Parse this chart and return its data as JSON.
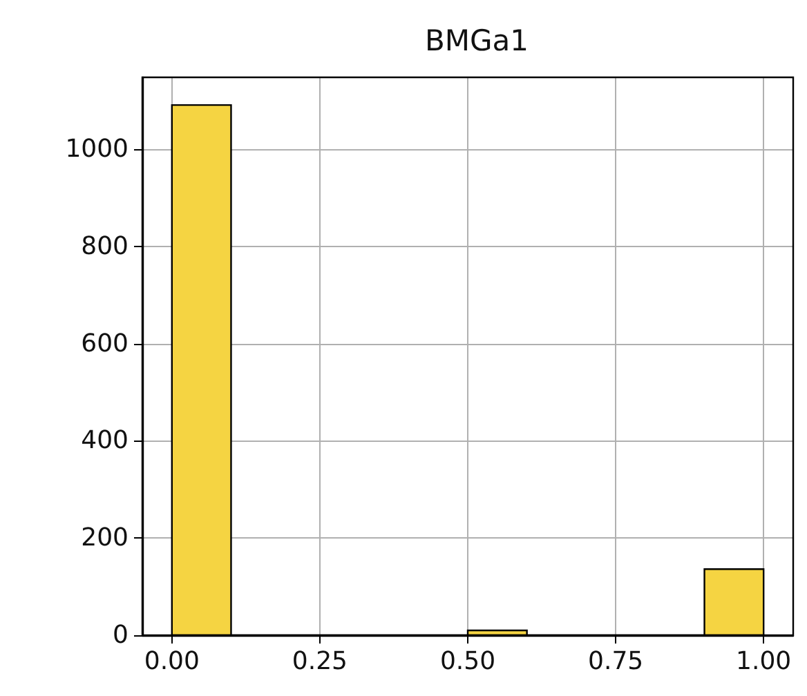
{
  "chart_data": {
    "type": "histogram",
    "title": "BMGa1",
    "bins": [
      0,
      0.1,
      0.2,
      0.3,
      0.4,
      0.5,
      0.6,
      0.7,
      0.8,
      0.9,
      1.0
    ],
    "values": [
      1091,
      0,
      0,
      0,
      0,
      10,
      0,
      0,
      0,
      136
    ],
    "color": "#f5d442",
    "xlim": [
      -0.05,
      1.05
    ],
    "xticks": [
      {
        "value": 0,
        "label": "0.00"
      },
      {
        "value": 0.25,
        "label": "0.25"
      },
      {
        "value": 0.5,
        "label": "0.50"
      },
      {
        "value": 0.75,
        "label": "0.75"
      },
      {
        "value": 1,
        "label": "1.00"
      }
    ],
    "ylim": [
      0,
      1148
    ],
    "yticks": [
      0,
      200,
      400,
      600,
      800,
      1000
    ],
    "grid": true
  }
}
